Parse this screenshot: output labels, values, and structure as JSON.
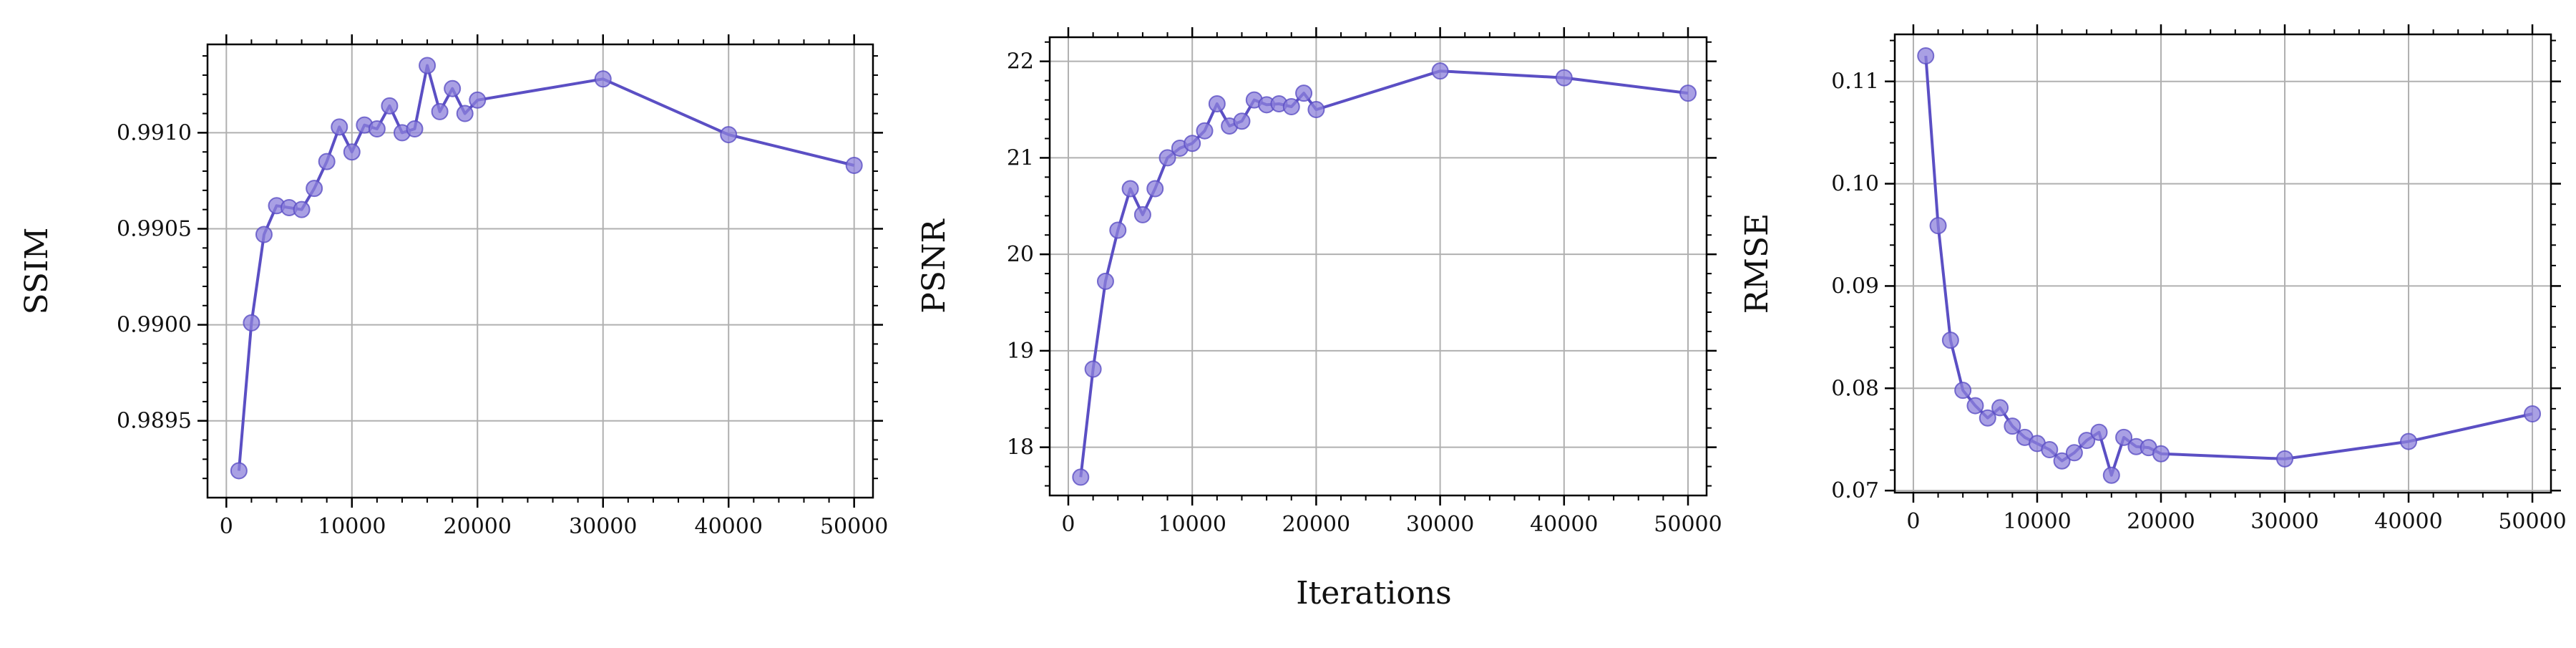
{
  "figure": {
    "shared_xlabel": "Iterations",
    "line_color": "#5b4fc4",
    "marker_color": "#8c80db",
    "grid_color": "#b0b0b0"
  },
  "chart_data": [
    {
      "type": "line",
      "ylabel": "SSIM",
      "xlabel": "",
      "xlim": [
        -1500,
        51500
      ],
      "ylim": [
        0.9891,
        0.99146
      ],
      "x_ticks": [
        0,
        10000,
        20000,
        30000,
        40000,
        50000
      ],
      "x_tick_labels": [
        "0",
        "10000",
        "20000",
        "30000",
        "40000",
        "50000"
      ],
      "y_ticks": [
        0.9895,
        0.99,
        0.9905,
        0.991
      ],
      "y_tick_labels": [
        "0.9895",
        "0.9900",
        "0.9905",
        "0.9910"
      ],
      "grid": true,
      "series": [
        {
          "x": [
            1000,
            2000,
            3000,
            4000,
            5000,
            6000,
            7000,
            8000,
            9000,
            10000,
            11000,
            12000,
            13000,
            14000,
            15000,
            16000,
            17000,
            18000,
            19000,
            20000,
            30000,
            40000,
            50000
          ],
          "y": [
            0.98924,
            0.99001,
            0.99047,
            0.99062,
            0.99061,
            0.9906,
            0.99071,
            0.99085,
            0.99103,
            0.9909,
            0.99104,
            0.99102,
            0.99114,
            0.991,
            0.99102,
            0.99135,
            0.99111,
            0.99123,
            0.9911,
            0.99117,
            0.99128,
            0.99099,
            0.99083
          ]
        }
      ]
    },
    {
      "type": "line",
      "ylabel": "PSNR",
      "xlabel": "",
      "xlim": [
        -1500,
        51500
      ],
      "ylim": [
        17.5,
        22.25
      ],
      "x_ticks": [
        0,
        10000,
        20000,
        30000,
        40000,
        50000
      ],
      "x_tick_labels": [
        "0",
        "10000",
        "20000",
        "30000",
        "40000",
        "50000"
      ],
      "y_ticks": [
        18,
        19,
        20,
        21,
        22
      ],
      "y_tick_labels": [
        "18",
        "19",
        "20",
        "21",
        "22"
      ],
      "grid": true,
      "series": [
        {
          "x": [
            1000,
            2000,
            3000,
            4000,
            5000,
            6000,
            7000,
            8000,
            9000,
            10000,
            11000,
            12000,
            13000,
            14000,
            15000,
            16000,
            17000,
            18000,
            19000,
            20000,
            30000,
            40000,
            50000
          ],
          "y": [
            17.69,
            18.81,
            19.72,
            20.25,
            20.68,
            20.41,
            20.68,
            21.0,
            21.1,
            21.15,
            21.28,
            21.56,
            21.33,
            21.38,
            21.6,
            21.55,
            21.56,
            21.53,
            21.67,
            21.5,
            21.9,
            21.83,
            21.67
          ]
        }
      ]
    },
    {
      "type": "line",
      "ylabel": "RMSE",
      "xlabel": "",
      "xlim": [
        -1500,
        51500
      ],
      "ylim": [
        0.0698,
        0.1146
      ],
      "x_ticks": [
        0,
        10000,
        20000,
        30000,
        40000,
        50000
      ],
      "x_tick_labels": [
        "0",
        "10000",
        "20000",
        "30000",
        "40000",
        "50000"
      ],
      "y_ticks": [
        0.07,
        0.08,
        0.09,
        0.1,
        0.11
      ],
      "y_tick_labels": [
        "0.07",
        "0.08",
        "0.09",
        "0.10",
        "0.11"
      ],
      "grid": true,
      "series": [
        {
          "x": [
            1000,
            2000,
            3000,
            4000,
            5000,
            6000,
            7000,
            8000,
            9000,
            10000,
            11000,
            12000,
            13000,
            14000,
            15000,
            16000,
            17000,
            18000,
            19000,
            20000,
            30000,
            40000,
            50000
          ],
          "y": [
            0.1125,
            0.0959,
            0.0847,
            0.0798,
            0.0783,
            0.0771,
            0.0781,
            0.0763,
            0.0752,
            0.0746,
            0.074,
            0.0729,
            0.0737,
            0.0749,
            0.0757,
            0.0715,
            0.0752,
            0.0743,
            0.0742,
            0.0736,
            0.0731,
            0.0748,
            0.0775
          ]
        }
      ]
    }
  ]
}
